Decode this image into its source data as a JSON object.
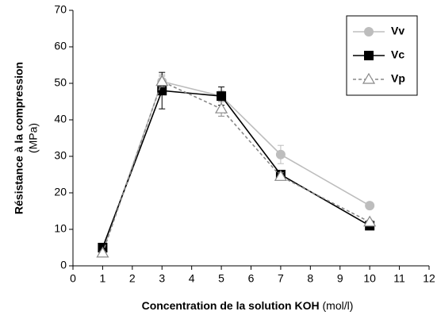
{
  "chart_data": {
    "type": "line",
    "x_label": "Concentration de la solution KOH",
    "x_label_unit": "(mol/l)",
    "y_label": "Résistance à la compression",
    "y_label_unit": "(MPa)",
    "x": [
      1,
      3,
      5,
      7,
      10
    ],
    "series": [
      {
        "name": "Vv",
        "color": "#bdbdbd",
        "marker": "circle",
        "dashed": false,
        "values": [
          4,
          50.5,
          46.5,
          30.5,
          16.5
        ],
        "errors": [
          0.5,
          2,
          1.5,
          2.5,
          0.5
        ]
      },
      {
        "name": "Vc",
        "color": "#000000",
        "marker": "square",
        "dashed": false,
        "values": [
          5,
          48,
          46.5,
          25,
          11
        ],
        "errors": [
          0.5,
          5,
          2.5,
          1,
          0.5
        ]
      },
      {
        "name": "Vp",
        "color": "#888888",
        "marker": "triangle",
        "dashed": true,
        "values": [
          3.5,
          50.5,
          43,
          24.5,
          12
        ],
        "errors": [
          0.5,
          1.5,
          2,
          1,
          0.5
        ]
      }
    ],
    "xlim": [
      0,
      12
    ],
    "xticks": [
      0,
      1,
      2,
      3,
      4,
      5,
      6,
      7,
      8,
      9,
      10,
      11,
      12
    ],
    "ylim": [
      0,
      70
    ],
    "yticks": [
      0,
      10,
      20,
      30,
      40,
      50,
      60,
      70
    ],
    "grid": false,
    "legend": "top-right"
  }
}
